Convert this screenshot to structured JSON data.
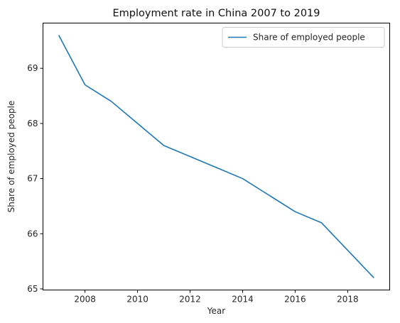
{
  "chart_data": {
    "type": "line",
    "title": "Employment rate in China 2007 to 2019",
    "xlabel": "Year",
    "ylabel": "Share of employed people",
    "xlim": [
      2006.4,
      2019.6
    ],
    "ylim": [
      64.98,
      69.82
    ],
    "xticks": [
      2008,
      2010,
      2012,
      2014,
      2016,
      2018
    ],
    "yticks": [
      65,
      66,
      67,
      68,
      69
    ],
    "grid": false,
    "legend_position": "top-right",
    "series": [
      {
        "name": "Share of employed people",
        "color": "#1f77b4",
        "x": [
          2007,
          2008,
          2009,
          2010,
          2011,
          2012,
          2013,
          2014,
          2015,
          2016,
          2017,
          2018,
          2019
        ],
        "y": [
          69.6,
          68.7,
          68.4,
          68.0,
          67.6,
          67.4,
          67.2,
          67.0,
          66.7,
          66.4,
          66.2,
          65.7,
          65.2
        ]
      }
    ]
  }
}
